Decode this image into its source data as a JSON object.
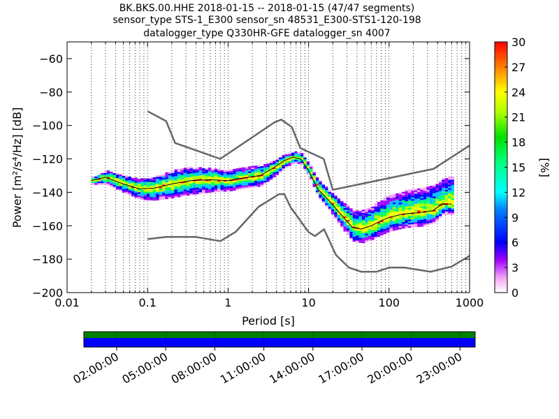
{
  "chart_data": {
    "type": "heatmap",
    "title_lines": [
      "BK.BKS.00.HHE   2018-01-15 -- 2018-01-15  (47/47 segments)",
      "sensor_type STS-1_E300 sensor_sn 48531_E300-STS1-120-198",
      "datalogger_type Q330HR-GFE datalogger_sn 4007"
    ],
    "xlabel": "Period [s]",
    "ylabel": "Power [m²/s⁴/Hz] [dB]",
    "x_scale": "log",
    "xlim": [
      0.01,
      1000
    ],
    "ylim": [
      -200,
      -50
    ],
    "x_tick_labels": [
      {
        "value": 0.01,
        "label": "0.01"
      },
      {
        "value": 0.1,
        "label": "0.1"
      },
      {
        "value": 1,
        "label": "1"
      },
      {
        "value": 10,
        "label": "10"
      },
      {
        "value": 100,
        "label": "100"
      },
      {
        "value": 1000,
        "label": "1000"
      }
    ],
    "y_tick_labels": [
      {
        "value": -60,
        "label": "−60"
      },
      {
        "value": -80,
        "label": "−80"
      },
      {
        "value": -100,
        "label": "−100"
      },
      {
        "value": -120,
        "label": "−120"
      },
      {
        "value": -140,
        "label": "−140"
      },
      {
        "value": -160,
        "label": "−160"
      },
      {
        "value": -180,
        "label": "−180"
      },
      {
        "value": -200,
        "label": "−200"
      }
    ],
    "grid": "dotted vertical",
    "colorbar": {
      "label": "[%]",
      "range": [
        0,
        30
      ],
      "ticks": [
        "0",
        "3",
        "6",
        "9",
        "12",
        "15",
        "18",
        "21",
        "24",
        "27",
        "30"
      ]
    },
    "noise_model_high": [
      [
        0.1,
        -91.5
      ],
      [
        0.17,
        -97.4
      ],
      [
        0.22,
        -110.5
      ],
      [
        0.8,
        -120
      ],
      [
        3.8,
        -98
      ],
      [
        4.6,
        -96.5
      ],
      [
        6.2,
        -101
      ],
      [
        7.9,
        -113.5
      ],
      [
        15.4,
        -120
      ],
      [
        20,
        -138.5
      ],
      [
        354.8,
        -126
      ],
      [
        1000,
        -112
      ]
    ],
    "noise_model_low": [
      [
        0.1,
        -168
      ],
      [
        0.17,
        -166.7
      ],
      [
        0.4,
        -166.7
      ],
      [
        0.8,
        -169.2
      ],
      [
        1.24,
        -163.7
      ],
      [
        2.4,
        -148.6
      ],
      [
        4.3,
        -141.1
      ],
      [
        5.0,
        -141.1
      ],
      [
        6.0,
        -149
      ],
      [
        10.0,
        -163.8
      ],
      [
        12.0,
        -166.2
      ],
      [
        15.6,
        -162.1
      ],
      [
        21.9,
        -177.5
      ],
      [
        31.6,
        -185
      ],
      [
        45,
        -187.5
      ],
      [
        70,
        -187.5
      ],
      [
        101,
        -185
      ],
      [
        154,
        -185
      ],
      [
        328,
        -187.5
      ],
      [
        600,
        -184.4
      ],
      [
        1000,
        -178
      ]
    ],
    "median_curve": [
      [
        0.02,
        -133
      ],
      [
        0.03,
        -131
      ],
      [
        0.05,
        -135
      ],
      [
        0.08,
        -138
      ],
      [
        0.12,
        -137.5
      ],
      [
        0.2,
        -135
      ],
      [
        0.35,
        -133
      ],
      [
        0.6,
        -132.5
      ],
      [
        1.0,
        -133
      ],
      [
        1.5,
        -131.5
      ],
      [
        2.5,
        -130
      ],
      [
        3.5,
        -126
      ],
      [
        5.0,
        -121
      ],
      [
        6.5,
        -119
      ],
      [
        8.0,
        -120
      ],
      [
        10,
        -127
      ],
      [
        13,
        -138
      ],
      [
        18,
        -145
      ],
      [
        25,
        -153
      ],
      [
        35,
        -161
      ],
      [
        45,
        -162
      ],
      [
        60,
        -160
      ],
      [
        80,
        -157
      ],
      [
        100,
        -155
      ],
      [
        150,
        -153
      ],
      [
        250,
        -152
      ],
      [
        350,
        -151
      ],
      [
        450,
        -147
      ],
      [
        600,
        -147
      ]
    ],
    "psd_band_spread": [
      [
        0.02,
        2,
        2
      ],
      [
        0.03,
        4,
        4
      ],
      [
        0.05,
        5,
        5
      ],
      [
        0.08,
        6,
        6
      ],
      [
        0.12,
        7,
        7
      ],
      [
        0.2,
        8,
        8
      ],
      [
        0.35,
        8,
        8
      ],
      [
        0.6,
        7,
        7
      ],
      [
        1.0,
        6,
        6
      ],
      [
        1.5,
        6,
        6
      ],
      [
        2.5,
        6,
        6
      ],
      [
        3.5,
        5,
        5
      ],
      [
        5.0,
        4,
        4
      ],
      [
        6.5,
        3,
        3
      ],
      [
        8.0,
        3,
        3
      ],
      [
        10,
        4,
        4
      ],
      [
        13,
        5,
        5
      ],
      [
        18,
        6,
        6
      ],
      [
        25,
        8,
        8
      ],
      [
        35,
        10,
        8
      ],
      [
        45,
        11,
        8
      ],
      [
        60,
        12,
        8
      ],
      [
        80,
        13,
        8
      ],
      [
        100,
        13,
        8
      ],
      [
        150,
        14,
        8
      ],
      [
        250,
        14,
        8
      ],
      [
        350,
        15,
        7
      ],
      [
        450,
        15,
        6
      ],
      [
        600,
        17,
        6
      ]
    ],
    "time_axis": {
      "tick_labels": [
        "02:00:00",
        "05:00:00",
        "08:00:00",
        "11:00:00",
        "14:00:00",
        "17:00:00",
        "20:00:00",
        "23:00:00"
      ],
      "data_coverage_color": "#0000ff",
      "gap_free_color": "#008000"
    },
    "colors": {
      "noise_model": "#666666",
      "median": "#000000"
    }
  }
}
